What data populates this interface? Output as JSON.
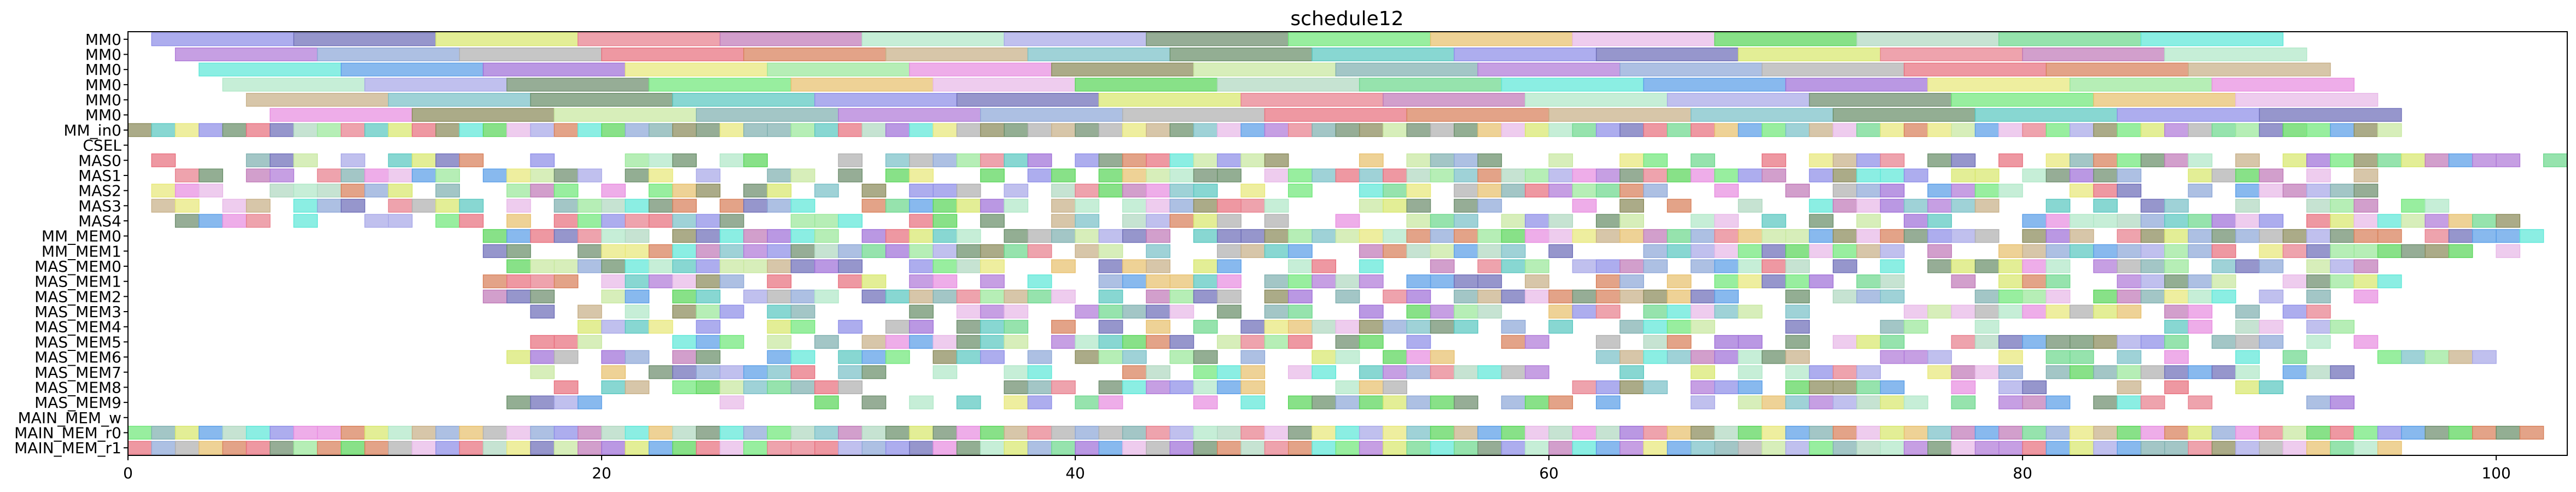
{
  "chart_data": {
    "type": "gantt",
    "title": "schedule12",
    "xlim": [
      0,
      103
    ],
    "xticks": [
      "0",
      "20",
      "40",
      "60",
      "80",
      "100"
    ],
    "rows": [
      "MM0",
      "MM0",
      "MM0",
      "MM0",
      "MM0",
      "MM0",
      "MM_in0",
      "CSEL",
      "MAS0",
      "MAS1",
      "MAS2",
      "MAS3",
      "MAS4",
      "MM_MEM0",
      "MM_MEM1",
      "MAS_MEM0",
      "MAS_MEM1",
      "MAS_MEM2",
      "MAS_MEM3",
      "MAS_MEM4",
      "MAS_MEM5",
      "MAS_MEM6",
      "MAS_MEM7",
      "MAS_MEM8",
      "MAS_MEM9",
      "MAIN_MEM_w",
      "MAIN_MEM_r0",
      "MAIN_MEM_r1"
    ],
    "palette": [
      "#8e8ee8",
      "#5ad65a",
      "#7fb0b0",
      "#6e6eb8",
      "#b0d8c0",
      "#b07ad8",
      "#d8e86e",
      "#6ed88e",
      "#8ea8d8",
      "#e8808e",
      "#5ee8d8",
      "#b0b0b0",
      "#c07ab8",
      "#5a9ee8",
      "#e8707e",
      "#b0e8c8",
      "#a070d8",
      "#d8805a",
      "#a8a8e8",
      "#e8e87a",
      "#c8b088",
      "#6e8e6e",
      "#9ae89a",
      "#7ac0c8",
      "#70e87a",
      "#e88ee0",
      "#6a8f6a",
      "#e8c06e",
      "#8a8a5a",
      "#5ac8c0",
      "#e8b8e8",
      "#c8e8a0"
    ],
    "lanes": [
      {
        "row": 0,
        "segments": [
          [
            1,
            7
          ],
          [
            7,
            13
          ],
          [
            13,
            19
          ],
          [
            19,
            25
          ],
          [
            25,
            31
          ],
          [
            31,
            37
          ],
          [
            37,
            43
          ],
          [
            43,
            49
          ],
          [
            49,
            55
          ],
          [
            55,
            61
          ],
          [
            61,
            67
          ],
          [
            67,
            73
          ],
          [
            73,
            79
          ],
          [
            79,
            85
          ],
          [
            85,
            91
          ]
        ]
      },
      {
        "row": 1,
        "segments": [
          [
            2,
            8
          ],
          [
            8,
            14
          ],
          [
            14,
            20
          ],
          [
            20,
            26
          ],
          [
            26,
            32
          ],
          [
            32,
            38
          ],
          [
            38,
            44
          ],
          [
            44,
            50
          ],
          [
            50,
            56
          ],
          [
            56,
            62
          ],
          [
            62,
            68
          ],
          [
            68,
            74
          ],
          [
            74,
            80
          ],
          [
            80,
            86
          ],
          [
            86,
            92
          ]
        ]
      },
      {
        "row": 2,
        "segments": [
          [
            3,
            9
          ],
          [
            9,
            15
          ],
          [
            15,
            21
          ],
          [
            21,
            27
          ],
          [
            27,
            33
          ],
          [
            33,
            39
          ],
          [
            39,
            45
          ],
          [
            45,
            51
          ],
          [
            51,
            57
          ],
          [
            57,
            63
          ],
          [
            63,
            69
          ],
          [
            69,
            75
          ],
          [
            75,
            81
          ],
          [
            81,
            87
          ],
          [
            87,
            93
          ]
        ]
      },
      {
        "row": 3,
        "segments": [
          [
            4,
            10
          ],
          [
            10,
            16
          ],
          [
            16,
            22
          ],
          [
            22,
            28
          ],
          [
            28,
            34
          ],
          [
            34,
            40
          ],
          [
            40,
            46
          ],
          [
            46,
            52
          ],
          [
            52,
            58
          ],
          [
            58,
            64
          ],
          [
            64,
            70
          ],
          [
            70,
            76
          ],
          [
            76,
            82
          ],
          [
            82,
            88
          ],
          [
            88,
            94
          ]
        ]
      },
      {
        "row": 4,
        "segments": [
          [
            5,
            11
          ],
          [
            11,
            17
          ],
          [
            17,
            23
          ],
          [
            23,
            29
          ],
          [
            29,
            35
          ],
          [
            35,
            41
          ],
          [
            41,
            47
          ],
          [
            47,
            53
          ],
          [
            53,
            59
          ],
          [
            59,
            65
          ],
          [
            65,
            71
          ],
          [
            71,
            77
          ],
          [
            77,
            83
          ],
          [
            83,
            89
          ],
          [
            89,
            95
          ]
        ]
      },
      {
        "row": 5,
        "segments": [
          [
            6,
            12
          ],
          [
            12,
            18
          ],
          [
            18,
            24
          ],
          [
            24,
            30
          ],
          [
            30,
            36
          ],
          [
            36,
            42
          ],
          [
            42,
            48
          ],
          [
            48,
            54
          ],
          [
            54,
            60
          ],
          [
            60,
            66
          ],
          [
            66,
            72
          ],
          [
            72,
            78
          ],
          [
            78,
            84
          ],
          [
            84,
            90
          ],
          [
            90,
            96
          ]
        ]
      }
    ],
    "grid": false
  }
}
